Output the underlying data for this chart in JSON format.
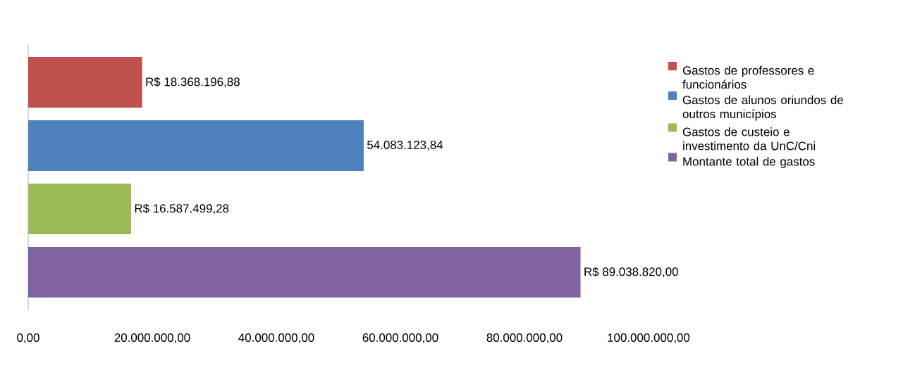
{
  "chart_data": {
    "type": "bar",
    "orientation": "horizontal",
    "categories": [
      null
    ],
    "series": [
      {
        "name": "Gastos de professores e funcionários",
        "color": "#c0504d",
        "values": [
          18368196.88
        ],
        "value_labels": [
          "R$ 18.368.196,88"
        ]
      },
      {
        "name": "Gastos de alunos oriundos de outros municípios",
        "color": "#4f81bd",
        "values": [
          54083123.84
        ],
        "value_labels": [
          "54.083.123,84"
        ]
      },
      {
        "name": "Gastos de custeio e investimento da UnC/Cni",
        "color": "#9bbb59",
        "values": [
          16587499.28
        ],
        "value_labels": [
          "R$ 16.587.499,28"
        ]
      },
      {
        "name": "Montante total de gastos",
        "color": "#8064a2",
        "values": [
          89038820.0
        ],
        "value_labels": [
          "R$ 89.038.820,00"
        ]
      }
    ],
    "xlim": [
      0,
      100000000
    ],
    "xticks": [
      {
        "value": 0,
        "label": "0,00"
      },
      {
        "value": 20000000,
        "label": "20.000.000,00"
      },
      {
        "value": 40000000,
        "label": "40.000.000,00"
      },
      {
        "value": 60000000,
        "label": "60.000.000,00"
      },
      {
        "value": 80000000,
        "label": "80.000.000,00"
      },
      {
        "value": 100000000,
        "label": "100.000.000,00"
      }
    ],
    "tick_labels": "x",
    "legend": "right"
  }
}
